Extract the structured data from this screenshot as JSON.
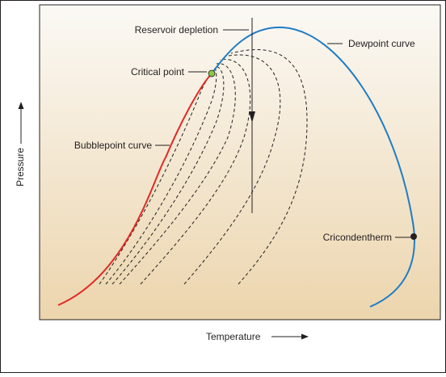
{
  "diagram": {
    "xlabel": "Temperature",
    "ylabel": "Pressure",
    "labels": {
      "reservoir_depletion": "Reservoir depletion",
      "dewpoint_curve": "Dewpoint curve",
      "critical_point": "Critical point",
      "bubblepoint_curve": "Bubblepoint curve",
      "cricondentherm": "Cricondentherm"
    },
    "colors": {
      "bubblepoint_curve": "#e02b26",
      "dewpoint_curve": "#1e7cc4",
      "critical_point": "#8dc63f",
      "cricondentherm": "#231f20",
      "quality_lines": "#231f20",
      "depletion_arrow": "#231f20",
      "background_top": "#fbf9f5",
      "background_bottom": "#ecd5ad",
      "border": "#231f20"
    }
  }
}
